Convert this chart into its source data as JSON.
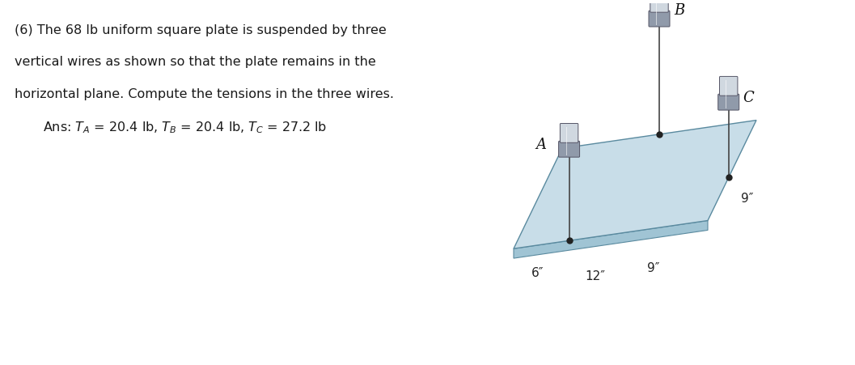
{
  "fig_width": 10.57,
  "fig_height": 4.51,
  "dpi": 100,
  "bg_color": "#ffffff",
  "text_color": "#1a1a1a",
  "problem_text_line1": "(6) The 68 lb uniform square plate is suspended by three",
  "problem_text_line2": "vertical wires as shown so that the plate remains in the",
  "problem_text_line3": "horizontal plane. Compute the tensions in the three wires.",
  "ans_text": "Ans: $T_A$ = 20.4 lb, $T_B$ = 20.4 lb, $T_C$ = 27.2 lb",
  "plate_color": "#c8dde8",
  "plate_edge_color": "#5a8a9f",
  "plate_thickness_color": "#a0c4d4",
  "wire_color": "#444444",
  "connector_color_top": "#b0b8c0",
  "connector_color_bottom": "#8a9aa8",
  "dim_text_color": "#222222",
  "label_color": "#111111"
}
